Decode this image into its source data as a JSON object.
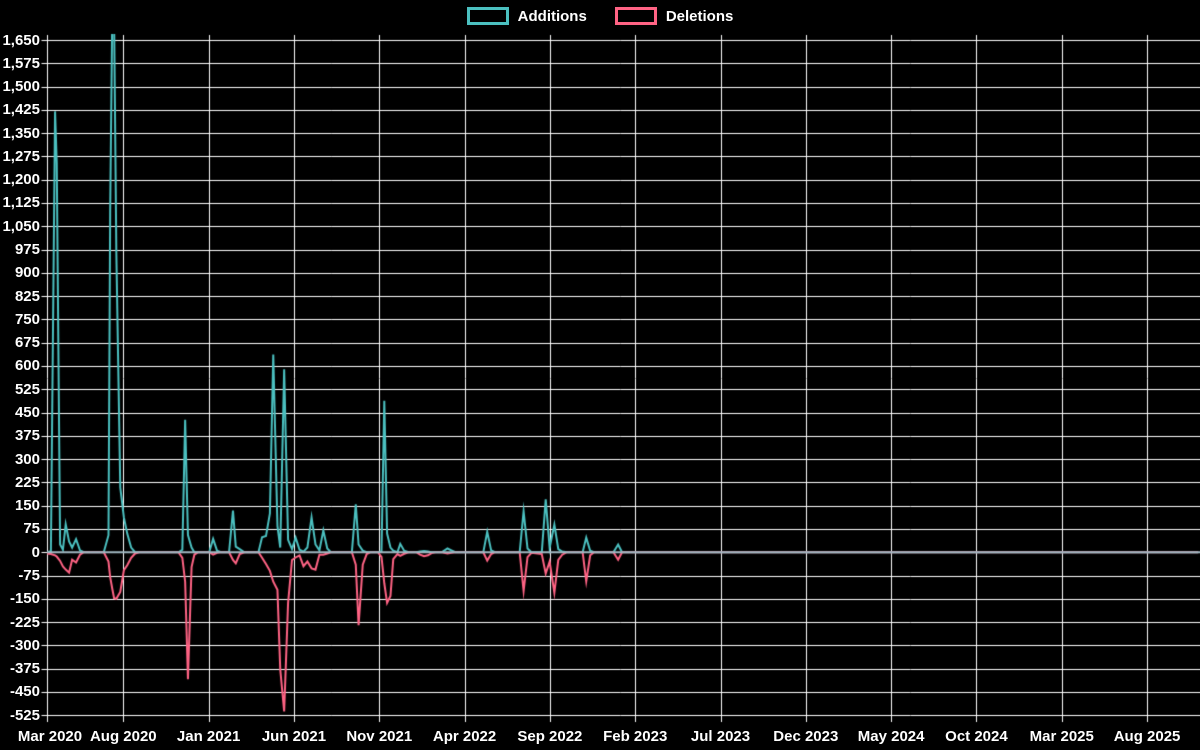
{
  "legend": [
    {
      "label": "Additions",
      "color": "#4bc0c0"
    },
    {
      "label": "Deletions",
      "color": "#ff6384"
    }
  ],
  "chart_data": {
    "type": "line",
    "title": "",
    "xlabel": "",
    "ylabel": "",
    "legend_position": "top-center",
    "grid": true,
    "background_color": "#000000",
    "grid_color": "#ffffff",
    "zero_line_color": "#a0b8c2",
    "ylim": [
      -525,
      1650
    ],
    "y_tick_step": 75,
    "y_ticks": [
      "1,650",
      "1,575",
      "1,500",
      "1,425",
      "1,350",
      "1,275",
      "1,200",
      "1,125",
      "1,050",
      "975",
      "900",
      "825",
      "750",
      "675",
      "600",
      "525",
      "450",
      "375",
      "300",
      "225",
      "150",
      "75",
      "0",
      "-75",
      "-150",
      "-225",
      "-300",
      "-375",
      "-450",
      "-525"
    ],
    "x_ticks": [
      "Mar 2020",
      "Aug 2020",
      "Jan 2021",
      "Jun 2021",
      "Nov 2021",
      "Apr 2022",
      "Sep 2022",
      "Feb 2023",
      "Jul 2023",
      "Dec 2023",
      "May 2024",
      "Oct 2024",
      "Mar 2025",
      "Aug 2025"
    ],
    "series": [
      {
        "name": "Additions",
        "color": "#4bc0c0",
        "value_index": 1
      },
      {
        "name": "Deletions",
        "color": "#ff6384",
        "value_index": 2
      }
    ],
    "note": "weekly additions (+) and deletions (-); values estimated from plot; additions above 1650 are clipped by the axis",
    "points": [
      [
        "2020-03-17",
        0,
        -4
      ],
      [
        "2020-03-24",
        3,
        -6
      ],
      [
        "2020-04-01",
        1420,
        -10
      ],
      [
        "2020-04-04",
        1255,
        -14
      ],
      [
        "2020-04-10",
        25,
        -28
      ],
      [
        "2020-04-15",
        8,
        -46
      ],
      [
        "2020-04-20",
        90,
        -56
      ],
      [
        "2020-04-26",
        35,
        -66
      ],
      [
        "2020-05-01",
        15,
        -24
      ],
      [
        "2020-05-08",
        42,
        -33
      ],
      [
        "2020-05-15",
        6,
        -8
      ],
      [
        "2020-05-22",
        0,
        0
      ],
      [
        "2020-06-27",
        0,
        0
      ],
      [
        "2020-07-05",
        55,
        -30
      ],
      [
        "2020-07-08",
        1095,
        -80
      ],
      [
        "2020-07-12",
        1780,
        -120
      ],
      [
        "2020-07-15",
        1720,
        -148
      ],
      [
        "2020-07-19",
        965,
        -150
      ],
      [
        "2020-07-26",
        209,
        -128
      ],
      [
        "2020-08-02",
        112,
        -58
      ],
      [
        "2020-08-08",
        60,
        -42
      ],
      [
        "2020-08-15",
        15,
        -18
      ],
      [
        "2020-08-22",
        0,
        -4
      ],
      [
        "2020-08-29",
        0,
        0
      ],
      [
        "2020-11-08",
        0,
        0
      ],
      [
        "2020-11-15",
        8,
        -18
      ],
      [
        "2020-11-20",
        427,
        -95
      ],
      [
        "2020-11-25",
        55,
        -409
      ],
      [
        "2020-12-01",
        15,
        -48
      ],
      [
        "2020-12-06",
        0,
        -8
      ],
      [
        "2020-12-13",
        0,
        0
      ],
      [
        "2021-01-02",
        0,
        0
      ],
      [
        "2021-01-09",
        43,
        -8
      ],
      [
        "2021-01-16",
        5,
        -2
      ],
      [
        "2021-01-23",
        0,
        0
      ],
      [
        "2021-02-07",
        0,
        0
      ],
      [
        "2021-02-14",
        134,
        -25
      ],
      [
        "2021-02-19",
        18,
        -36
      ],
      [
        "2021-02-26",
        10,
        -6
      ],
      [
        "2021-03-04",
        0,
        0
      ],
      [
        "2021-03-29",
        0,
        0
      ],
      [
        "2021-04-05",
        48,
        -18
      ],
      [
        "2021-04-12",
        52,
        -38
      ],
      [
        "2021-04-19",
        125,
        -60
      ],
      [
        "2021-04-25",
        637,
        -95
      ],
      [
        "2021-05-02",
        85,
        -121
      ],
      [
        "2021-05-07",
        15,
        -377
      ],
      [
        "2021-05-14",
        589,
        -513
      ],
      [
        "2021-05-21",
        40,
        -163
      ],
      [
        "2021-05-28",
        10,
        -25
      ],
      [
        "2021-06-04",
        47,
        -17
      ],
      [
        "2021-06-11",
        8,
        -10
      ],
      [
        "2021-06-18",
        2,
        -45
      ],
      [
        "2021-06-25",
        15,
        -30
      ],
      [
        "2021-07-02",
        112,
        -52
      ],
      [
        "2021-07-09",
        25,
        -56
      ],
      [
        "2021-07-16",
        6,
        -8
      ],
      [
        "2021-07-23",
        70,
        -8
      ],
      [
        "2021-07-30",
        12,
        -4
      ],
      [
        "2021-08-06",
        0,
        0
      ],
      [
        "2021-09-13",
        0,
        0
      ],
      [
        "2021-09-20",
        154,
        -40
      ],
      [
        "2021-09-25",
        25,
        -235
      ],
      [
        "2021-10-02",
        5,
        -40
      ],
      [
        "2021-10-09",
        0,
        -6
      ],
      [
        "2021-10-16",
        0,
        0
      ],
      [
        "2021-10-29",
        0,
        0
      ],
      [
        "2021-11-05",
        2,
        -15
      ],
      [
        "2021-11-10",
        488,
        -100
      ],
      [
        "2021-11-15",
        60,
        -163
      ],
      [
        "2021-11-21",
        15,
        -141
      ],
      [
        "2021-11-26",
        5,
        -22
      ],
      [
        "2021-12-03",
        0,
        -6
      ],
      [
        "2021-12-08",
        27,
        -12
      ],
      [
        "2021-12-15",
        5,
        -5
      ],
      [
        "2021-12-23",
        0,
        0
      ],
      [
        "2022-01-06",
        0,
        0
      ],
      [
        "2022-01-13",
        2,
        -8
      ],
      [
        "2022-01-20",
        4,
        -13
      ],
      [
        "2022-01-27",
        2,
        -10
      ],
      [
        "2022-02-03",
        0,
        -3
      ],
      [
        "2022-02-10",
        0,
        0
      ],
      [
        "2022-02-21",
        0,
        0
      ],
      [
        "2022-03-01",
        12,
        -4
      ],
      [
        "2022-03-08",
        6,
        -2
      ],
      [
        "2022-03-15",
        0,
        0
      ],
      [
        "2022-05-04",
        0,
        0
      ],
      [
        "2022-05-11",
        66,
        -27
      ],
      [
        "2022-05-18",
        6,
        -6
      ],
      [
        "2022-05-25",
        0,
        0
      ],
      [
        "2022-07-08",
        0,
        0
      ],
      [
        "2022-07-15",
        132,
        -125
      ],
      [
        "2022-07-22",
        12,
        -16
      ],
      [
        "2022-07-29",
        0,
        -2
      ],
      [
        "2022-08-17",
        0,
        -6
      ],
      [
        "2022-08-24",
        170,
        -69
      ],
      [
        "2022-08-31",
        14,
        -30
      ],
      [
        "2022-09-09",
        89,
        -131
      ],
      [
        "2022-09-16",
        10,
        -25
      ],
      [
        "2022-09-23",
        2,
        -8
      ],
      [
        "2022-10-01",
        0,
        0
      ],
      [
        "2022-10-29",
        0,
        0
      ],
      [
        "2022-11-05",
        47,
        -94
      ],
      [
        "2022-11-12",
        5,
        -10
      ],
      [
        "2022-11-19",
        0,
        0
      ],
      [
        "2022-12-23",
        0,
        0
      ],
      [
        "2023-01-01",
        25,
        -24
      ],
      [
        "2023-01-08",
        0,
        0
      ],
      [
        "2025-11-01",
        0,
        0
      ]
    ]
  }
}
